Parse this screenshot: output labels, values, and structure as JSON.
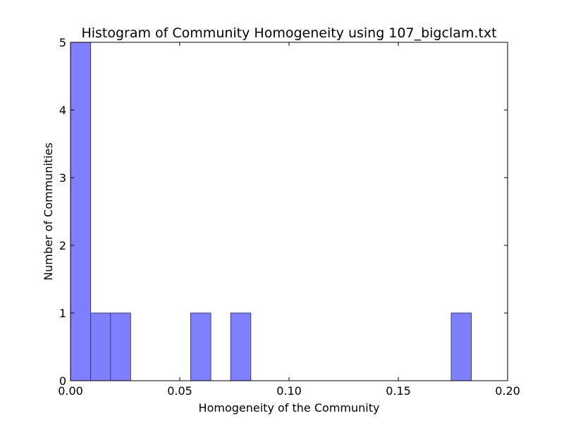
{
  "chart_data": {
    "type": "bar",
    "title": "Histogram of Community Homogeneity using 107_bigclam.txt",
    "xlabel": "Homogeneity of the Community",
    "ylabel": "Number of Communities",
    "xlim": [
      0.0,
      0.2
    ],
    "ylim": [
      0,
      5
    ],
    "x_ticks": [
      0.0,
      0.05,
      0.1,
      0.15,
      0.2
    ],
    "x_tick_labels": [
      "0.00",
      "0.05",
      "0.10",
      "0.15",
      "0.20"
    ],
    "y_ticks": [
      0,
      1,
      2,
      3,
      4,
      5
    ],
    "y_tick_labels": [
      "0",
      "1",
      "2",
      "3",
      "4",
      "5"
    ],
    "bar_color": "#8080ff",
    "bar_edge_color": "#3a3a80",
    "grid": false,
    "bins": [
      {
        "x0": 0.0,
        "x1": 0.0092,
        "count": 5
      },
      {
        "x0": 0.0092,
        "x1": 0.0183,
        "count": 1
      },
      {
        "x0": 0.0183,
        "x1": 0.0275,
        "count": 1
      },
      {
        "x0": 0.055,
        "x1": 0.0642,
        "count": 1
      },
      {
        "x0": 0.0733,
        "x1": 0.0825,
        "count": 1
      },
      {
        "x0": 0.1742,
        "x1": 0.1834,
        "count": 1
      }
    ]
  }
}
